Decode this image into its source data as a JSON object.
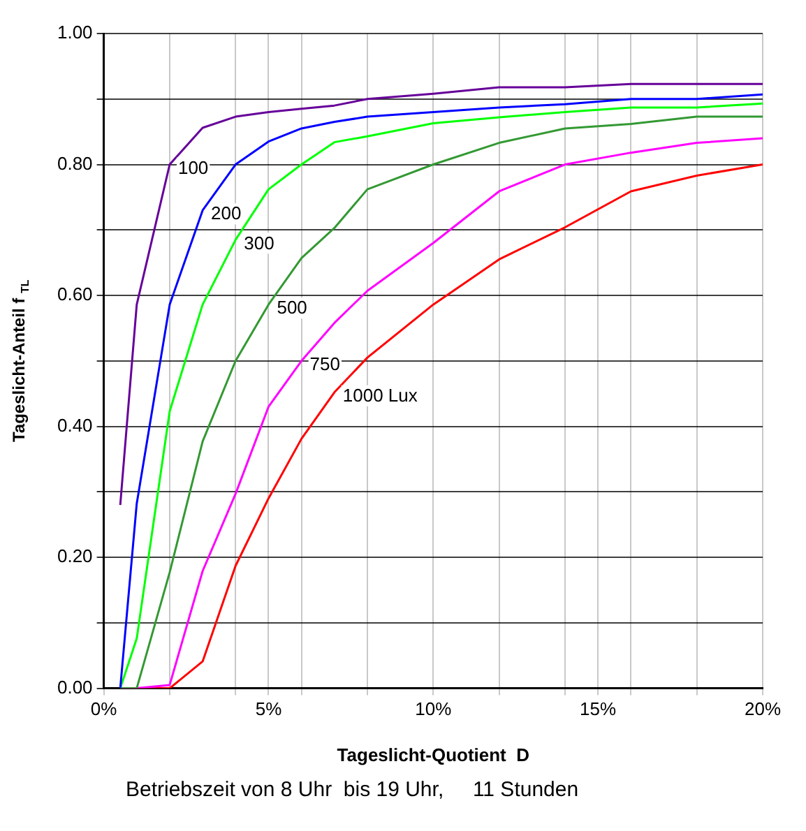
{
  "chart_data": {
    "type": "line",
    "xlabel": "Tageslicht-Quotient  D",
    "ylabel": "Tageslicht-Anteil f $_{TL}$",
    "annotations": [
      "Betriebszeit von 8 Uhr  bis 19 Uhr,     11 Stunden"
    ],
    "x": [
      0.5,
      1,
      2,
      3,
      4,
      5,
      6,
      7,
      8,
      10,
      12,
      14,
      16,
      18,
      20
    ],
    "series": [
      {
        "name": "100",
        "color": "#660099",
        "values": [
          0.28,
          0.586,
          0.8,
          0.856,
          0.873,
          0.88,
          0.885,
          0.89,
          0.9,
          0.908,
          0.918,
          0.918,
          0.923,
          0.923,
          0.923
        ]
      },
      {
        "name": "200",
        "color": "#0000ff",
        "values": [
          0,
          0.282,
          0.586,
          0.73,
          0.8,
          0.835,
          0.855,
          0.865,
          0.873,
          0.88,
          0.887,
          0.892,
          0.9,
          0.9,
          0.907
        ]
      },
      {
        "name": "300",
        "color": "#00ff00",
        "values": [
          0,
          0.076,
          0.423,
          0.586,
          0.685,
          0.762,
          0.8,
          0.834,
          0.843,
          0.863,
          0.872,
          0.88,
          0.887,
          0.887,
          0.893
        ]
      },
      {
        "name": "500",
        "color": "#339933",
        "values": [
          0,
          0,
          0.177,
          0.377,
          0.5,
          0.586,
          0.657,
          0.703,
          0.762,
          0.8,
          0.833,
          0.855,
          0.862,
          0.873,
          0.873
        ]
      },
      {
        "name": "750",
        "color": "#ff00ff",
        "values": [
          0,
          0,
          0.005,
          0.179,
          0.297,
          0.43,
          0.5,
          0.558,
          0.607,
          0.68,
          0.759,
          0.8,
          0.818,
          0.833,
          0.84
        ]
      },
      {
        "name": "1000 Lux",
        "color": "#ff0000",
        "values": [
          0,
          0,
          0,
          0.041,
          0.187,
          0.29,
          0.381,
          0.452,
          0.505,
          0.586,
          0.655,
          0.704,
          0.759,
          0.783,
          0.8
        ]
      }
    ],
    "xlim": [
      0,
      20
    ],
    "xticks": [
      {
        "value": 0,
        "label": "0%"
      },
      {
        "value": 2,
        "label": null
      },
      {
        "value": 4,
        "label": null
      },
      {
        "value": 5,
        "label": "5%"
      },
      {
        "value": 6,
        "label": null
      },
      {
        "value": 8,
        "label": null
      },
      {
        "value": 10,
        "label": "10%"
      },
      {
        "value": 12,
        "label": null
      },
      {
        "value": 14,
        "label": null
      },
      {
        "value": 15,
        "label": "15%"
      },
      {
        "value": 16,
        "label": null
      },
      {
        "value": 18,
        "label": null
      },
      {
        "value": 20,
        "label": "20%"
      }
    ],
    "ylim": [
      0,
      1
    ],
    "yticks": [
      {
        "value": 0,
        "label": "0.00"
      },
      {
        "value": 0.1,
        "label": null
      },
      {
        "value": 0.2,
        "label": "0.20"
      },
      {
        "value": 0.3,
        "label": null
      },
      {
        "value": 0.4,
        "label": "0.40"
      },
      {
        "value": 0.5,
        "label": null
      },
      {
        "value": 0.6,
        "label": "0.60"
      },
      {
        "value": 0.7,
        "label": null
      },
      {
        "value": 0.8,
        "label": "0.80"
      },
      {
        "value": 0.9,
        "label": null
      },
      {
        "value": 1,
        "label": "1.00"
      }
    ],
    "grid": true,
    "legend": false,
    "marker": "none",
    "line_style": "solid"
  }
}
